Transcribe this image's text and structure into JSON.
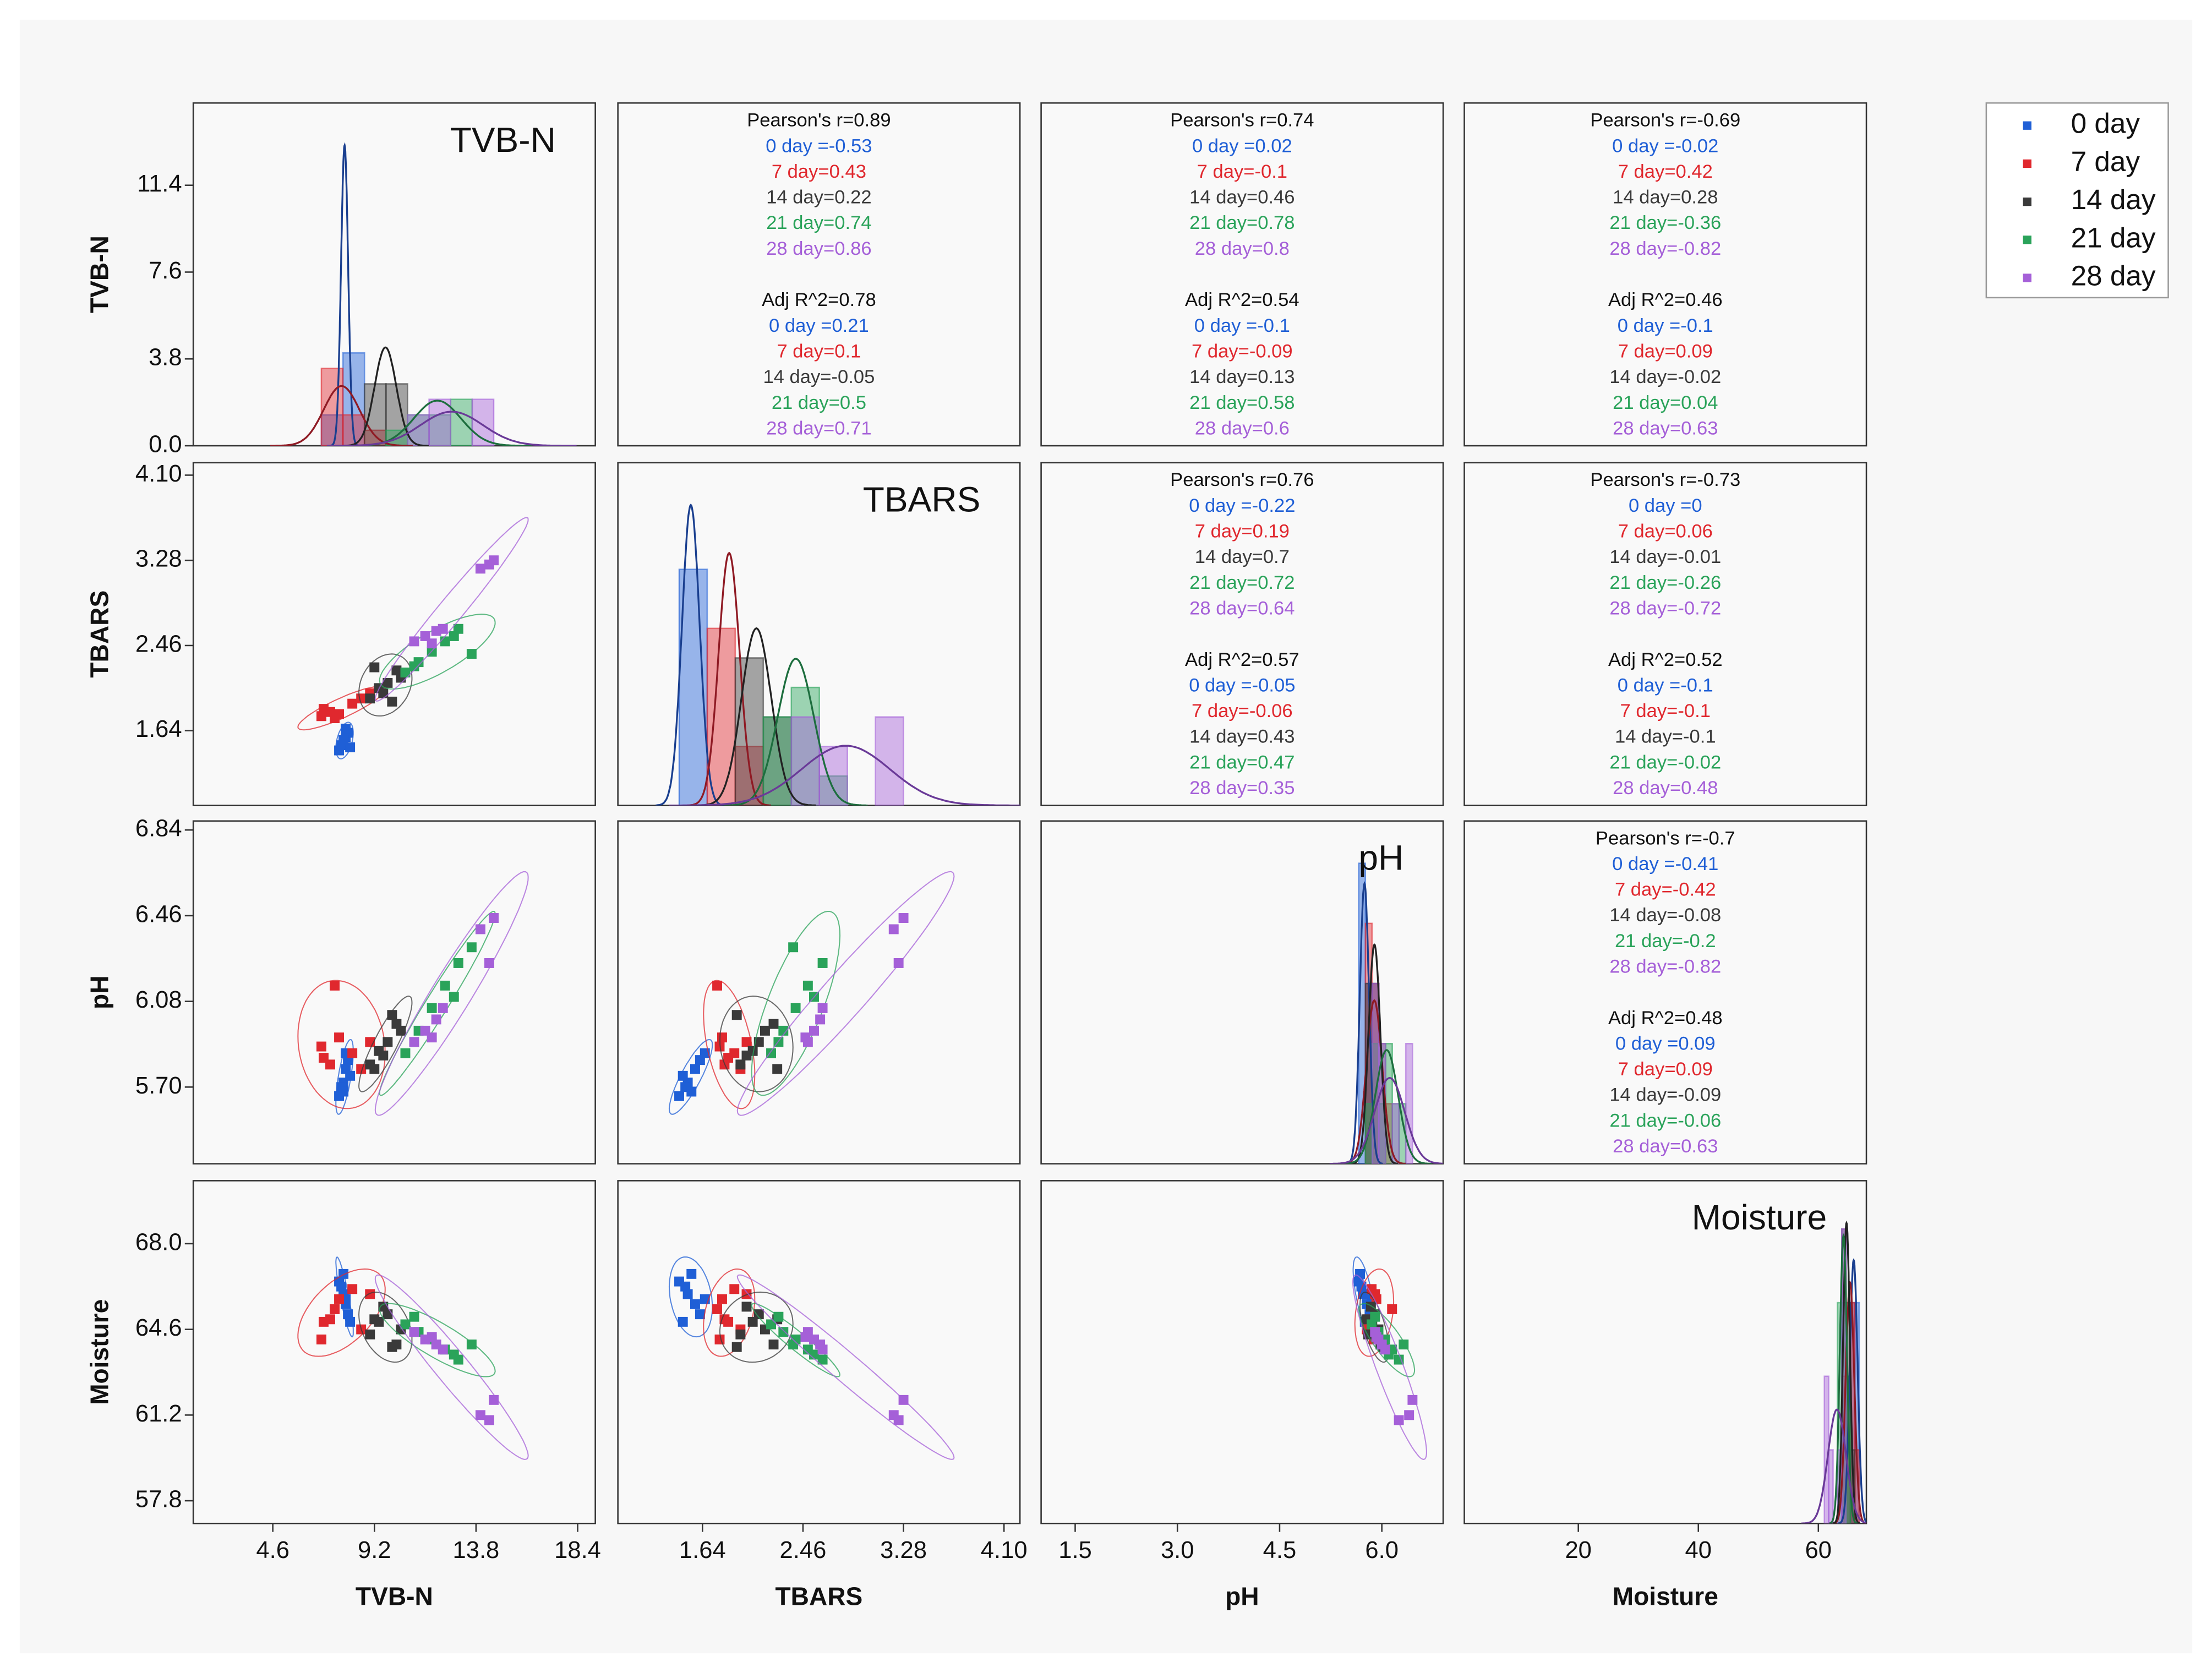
{
  "chart_data": {
    "type": "scatter_matrix",
    "variables": [
      "TVB-N",
      "TBARS",
      "pH",
      "Moisture"
    ],
    "x_axes": [
      {
        "lim": [
          1.0,
          19.2
        ],
        "ticks": [
          4.6,
          9.2,
          13.8,
          18.4
        ]
      },
      {
        "lim": [
          0.95,
          4.23
        ],
        "ticks": [
          1.64,
          2.46,
          3.28,
          {
            "value": 4.1,
            "label": "4.10"
          }
        ]
      },
      {
        "lim": [
          1.0,
          6.9
        ],
        "ticks": [
          1.5,
          {
            "value": 3,
            "label": "3.0"
          },
          4.5,
          {
            "value": 6,
            "label": "6.0"
          }
        ]
      },
      {
        "lim": [
          1,
          68
        ],
        "ticks": [
          20,
          40,
          60
        ]
      }
    ],
    "y_axes": [
      {
        "lim": [
          0,
          15
        ],
        "ticks": [
          {
            "value": 0,
            "label": "0.0"
          },
          3.8,
          7.6,
          11.4
        ]
      },
      {
        "lim": [
          0.92,
          4.22
        ],
        "ticks": [
          1.64,
          2.46,
          3.28,
          {
            "value": 4.1,
            "label": "4.10"
          }
        ]
      },
      {
        "lim": [
          5.36,
          6.88
        ],
        "ticks": [
          {
            "value": 5.7,
            "label": "5.70"
          },
          6.08,
          6.46,
          6.84
        ]
      },
      {
        "lim": [
          56.9,
          70.5
        ],
        "ticks": [
          57.8,
          61.2,
          64.6,
          {
            "value": 68,
            "label": "68.0"
          }
        ]
      }
    ],
    "series": [
      {
        "name": "0 day",
        "color": "#1f5fd6",
        "values": [
          [
            7.6,
            7.8,
            7.9,
            8.0,
            7.7,
            7.9,
            8.1,
            7.8
          ],
          [
            1.45,
            1.52,
            1.58,
            1.62,
            1.5,
            1.66,
            1.48,
            1.55
          ],
          [
            5.66,
            5.72,
            5.78,
            5.82,
            5.7,
            5.85,
            5.75,
            5.68
          ],
          [
            66.5,
            66.0,
            65.6,
            65.2,
            66.3,
            65.8,
            64.9,
            66.8
          ]
        ]
      },
      {
        "name": "7 day",
        "color": "#e0282e",
        "values": [
          [
            6.8,
            7.2,
            7.6,
            8.2,
            8.6,
            7.4,
            9.0,
            6.9
          ],
          [
            1.78,
            1.82,
            1.8,
            1.9,
            1.95,
            1.76,
            2.0,
            1.85
          ],
          [
            5.88,
            5.8,
            5.92,
            5.85,
            5.78,
            6.15,
            5.9,
            5.83
          ],
          [
            64.2,
            65.0,
            65.8,
            66.2,
            64.6,
            65.4,
            66.0,
            64.9
          ]
        ]
      },
      {
        "name": "14 day",
        "color": "#3a3a3a",
        "values": [
          [
            9.0,
            9.4,
            9.8,
            10.2,
            9.6,
            10.4,
            9.2,
            10.0
          ],
          [
            1.95,
            2.05,
            2.1,
            2.22,
            2.0,
            2.15,
            2.25,
            1.92
          ],
          [
            5.8,
            5.86,
            5.9,
            5.98,
            5.84,
            5.95,
            5.78,
            6.02
          ],
          [
            64.4,
            64.9,
            65.2,
            64.0,
            65.5,
            64.6,
            65.0,
            63.9
          ]
        ]
      },
      {
        "name": "21 day",
        "color": "#2aa35a",
        "values": [
          [
            10.6,
            11.2,
            11.8,
            12.4,
            13.0,
            13.6,
            11.0,
            12.8
          ],
          [
            2.2,
            2.3,
            2.4,
            2.5,
            2.62,
            2.38,
            2.26,
            2.55
          ],
          [
            5.85,
            5.95,
            6.05,
            6.15,
            6.25,
            6.32,
            5.9,
            6.1
          ],
          [
            64.8,
            64.5,
            64.2,
            63.8,
            63.4,
            64.0,
            65.1,
            63.6
          ]
        ]
      },
      {
        "name": "28 day",
        "color": "#a560d8",
        "values": [
          [
            11.0,
            11.5,
            12.0,
            14.0,
            14.6,
            11.8,
            12.3,
            14.4
          ],
          [
            2.5,
            2.55,
            2.6,
            3.2,
            3.28,
            2.48,
            2.62,
            3.24
          ],
          [
            5.9,
            5.95,
            6.0,
            6.4,
            6.45,
            5.92,
            6.05,
            6.25
          ],
          [
            64.5,
            64.2,
            64.0,
            61.2,
            61.8,
            64.3,
            63.8,
            61.0
          ]
        ]
      }
    ],
    "annotations": [
      [
        "Pearson's r=0.89",
        "0 day =-0.53",
        "7 day=0.43",
        "14 day=0.22",
        "21 day=0.74",
        "28 day=0.86",
        "Adj R^2=0.78",
        "0 day =0.21",
        "7 day=0.1",
        "14 day=-0.05",
        "21 day=0.5",
        "28 day=0.71"
      ],
      [
        "Pearson's r=0.74",
        "0 day =0.02",
        "7 day=-0.1",
        "14 day=0.46",
        "21 day=0.78",
        "28 day=0.8",
        "Adj R^2=0.54",
        "0 day =-0.1",
        "7 day=-0.09",
        "14 day=0.13",
        "21 day=0.58",
        "28 day=0.6"
      ],
      [
        "Pearson's r=-0.69",
        "0 day =-0.02",
        "7 day=0.42",
        "14 day=0.28",
        "21 day=-0.36",
        "28 day=-0.82",
        "Adj R^2=0.46",
        "0 day =-0.1",
        "7 day=0.09",
        "14 day=-0.02",
        "21 day=0.04",
        "28 day=0.63"
      ],
      [
        "Pearson's r=0.76",
        "0 day =-0.22",
        "7 day=0.19",
        "14 day=0.7",
        "21 day=0.72",
        "28 day=0.64",
        "Adj R^2=0.57",
        "0 day =-0.05",
        "7 day=-0.06",
        "14 day=0.43",
        "21 day=0.47",
        "28 day=0.35"
      ],
      [
        "Pearson's r=-0.73",
        "0 day =0",
        "7 day=0.06",
        "14 day=-0.01",
        "21 day=-0.26",
        "28 day=-0.72",
        "Adj R^2=0.52",
        "0 day =-0.1",
        "7 day=-0.1",
        "14 day=-0.1",
        "21 day=-0.02",
        "28 day=0.48"
      ],
      [
        "Pearson's r=-0.7",
        "0 day =-0.41",
        "7 day=-0.42",
        "14 day=-0.08",
        "21 day=-0.2",
        "28 day=-0.82",
        "Adj R^2=0.48",
        "0 day =0.09",
        "7 day=0.09",
        "14 day=-0.09",
        "21 day=-0.06",
        "28 day=0.63"
      ]
    ],
    "grid": false,
    "legend": "right"
  }
}
